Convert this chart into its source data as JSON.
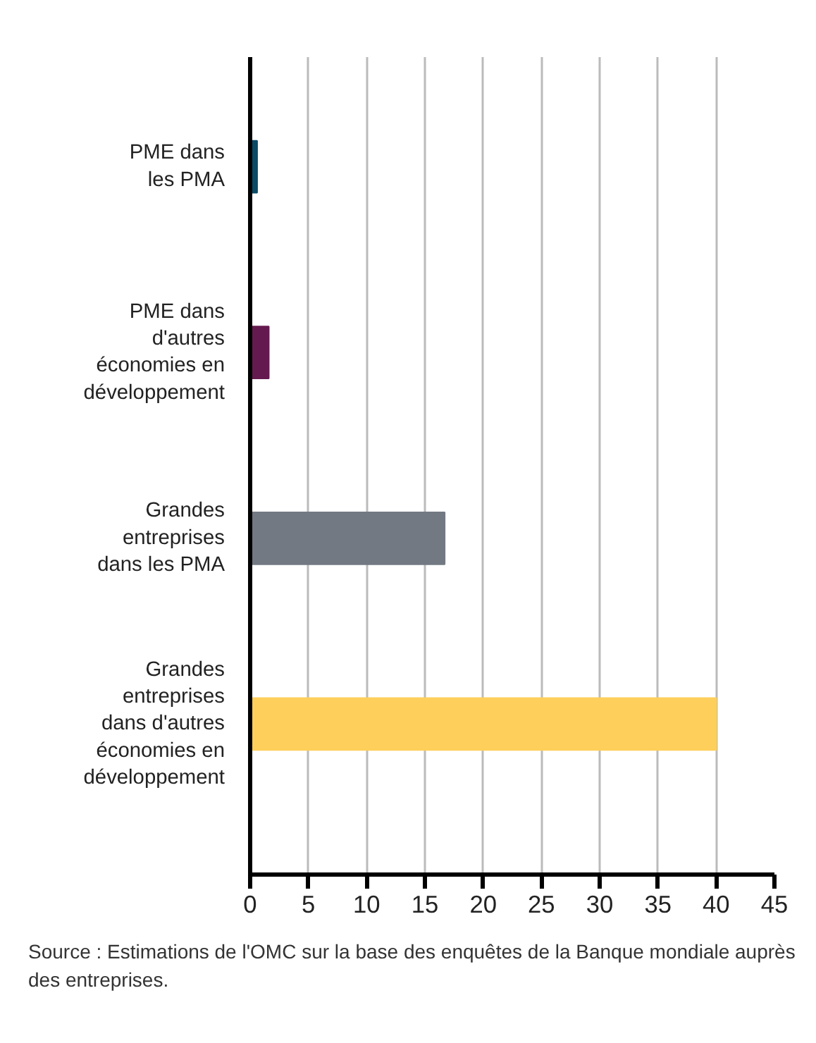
{
  "chart_data": {
    "type": "bar",
    "orientation": "horizontal",
    "categories": [
      "PME dans\nles PMA",
      "PME dans\nd'autres\néconomies en\ndéveloppement",
      "Grandes\nentreprises\ndans les PMA",
      "Grandes\nentreprises\ndans d'autres\néconomies en\ndéveloppement"
    ],
    "values": [
      0.6,
      1.6,
      16.7,
      40
    ],
    "colors": [
      "#0b4a66",
      "#651a4f",
      "#727982",
      "#fecf5b"
    ],
    "xlim": [
      0,
      45
    ],
    "xticks": [
      0,
      5,
      10,
      15,
      20,
      25,
      30,
      35,
      40,
      45
    ],
    "grid": "x",
    "annotations": [
      "Source : Estimations de l'OMC sur la base des enquêtes de la Banque mondiale auprès des entreprises."
    ]
  }
}
